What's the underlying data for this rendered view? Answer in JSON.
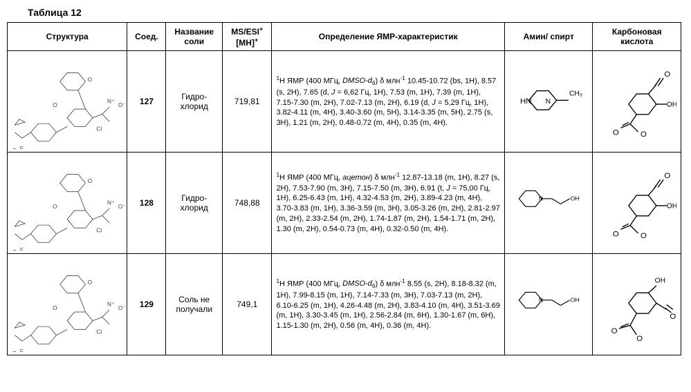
{
  "title": "Таблица 12",
  "headers": {
    "structure": "Структура",
    "compound": "Соед.",
    "salt_name": "Название соли",
    "ms": "MS/ESI",
    "ms_sup": "+",
    "mh": "[MH]",
    "mh_sup": "+",
    "nmr": "Определение ЯМР-характеристик",
    "amine": "Амин/ спирт",
    "acid": "Карбоновая кислота"
  },
  "rows": [
    {
      "compound": "127",
      "salt": "Гидро-хлорид",
      "ms": "719,81",
      "nmr_html": "<sup>1</sup>H ЯМР (400 МГц, <span class='i'>DMSO-d<sub>6</sub></span>) δ млн<sup>-1</sup> 10.45-10.72 (bs, 1H), 8.57 (s, 2H), 7.65 (d, <span class='i'>J</span> = 6,62 Гц, 1H), 7.53 (m, 1H), 7.39 (m, 1H), 7.15-7.30 (m, 2H), 7.02-7.13 (m, 2H), 6.19 (d, <span class='i'>J</span> = 5,29 Гц, 1H), 3.82-4.11 (m, 4H), 3.40-3.60 (m, 5H), 3.14-3.35 (m, 5H), 2.75 (s, 3H), 1.21 (m, 2H), 0.48-0.72 (m, 4H), 0.35 (m, 4H).",
      "amine_svg": "<svg viewBox='0 0 100 60'><g stroke='#000' stroke-width='1.2' fill='none'><polygon points='25,30 35,18 50,18 60,30 50,42 35,42'/><line x1='60' y1='30' x2='75' y2='30'/></g><text x='14' y='34' font-size='10'>HN</text><text x='46' y='34' font-size='9'>N</text><text x='76' y='24' font-size='9'>CH₃</text></svg>",
      "acid_svg": "<svg viewBox='0 0 100 100'><g stroke='#000' stroke-width='1.2' fill='none'><polygon points='40,55 50,42 65,42 75,55 65,68 50,68'/><line x1='65' y1='42' x2='75' y2='30'/><line x1='73' y1='32' x2='80' y2='22'/><line x1='77' y1='32' x2='84' y2='22'/><line x1='75' y1='55' x2='88' y2='55'/><line x1='50' y1='68' x2='42' y2='80'/><line x1='42' y1='80' x2='30' y2='85'/><line x1='42' y1='80' x2='52' y2='90'/><line x1='40' y1='78' x2='32' y2='82'/></g><text x='20' y='94' font-size='10'>O</text><text x='55' y='96' font-size='10'>O</text><text x='85' y='20' font-size='10'>O</text><text x='88' y='58' font-size='9'>OH</text></svg>"
    },
    {
      "compound": "128",
      "salt": "Гидро-хлорид",
      "ms": "748,88",
      "nmr_html": "<sup>1</sup>H ЯМР (400 МГц, <span class='i'>ацетон</span>) δ млн<sup>-1</sup> 12.87-13.18 (m, 1H), 8.27 (s, 2H), 7.53-7.90 (m, 3H), 7.15-7.50 (m, 3H), 6.91 (t, <span class='i'>J</span> = 75,00 Гц, 1H), 6.25-6.43 (m, 1H), 4.32-4.53 (m, 2H), 3.89-4.23 (m, 4H), 3.70-3.83 (m, 1H), 3.36-3.59 (m, 3H), 3.05-3.26 (m, 2H), 2.81-2.97 (m, 2H), 2.33-2.54 (m, 2H), 1.74-1.87 (m, 2H), 1.54-1.71 (m, 2H), 1.30 (m, 2H), 0.54-0.73 (m, 4H), 0.32-0.50 (m, 4H).",
      "amine_svg": "<svg viewBox='0 0 120 50'><g stroke='#000' stroke-width='1.2' fill='none'><polygon points='15,25 25,13 40,13 50,25 40,37 25,37'/><line x1='50' y1='25' x2='65' y2='25'/><line x1='65' y1='25' x2='78' y2='33'/><line x1='78' y1='33' x2='92' y2='25'/></g><text x='45' y='28' font-size='9'>N</text><text x='93' y='28' font-size='9'>OH</text></svg>",
      "acid_svg": "<svg viewBox='0 0 100 100'><g stroke='#000' stroke-width='1.2' fill='none'><polygon points='40,55 50,42 65,42 75,55 65,68 50,68'/><line x1='65' y1='42' x2='75' y2='30'/><line x1='73' y1='32' x2='80' y2='22'/><line x1='77' y1='32' x2='84' y2='22'/><line x1='75' y1='55' x2='88' y2='55'/><line x1='50' y1='68' x2='42' y2='80'/><line x1='42' y1='80' x2='30' y2='85'/><line x1='42' y1='80' x2='52' y2='90'/><line x1='40' y1='78' x2='32' y2='82'/></g><text x='20' y='94' font-size='10'>O</text><text x='55' y='96' font-size='10'>O</text><text x='85' y='20' font-size='10'>O</text><text x='88' y='58' font-size='9'>OH</text></svg>"
    },
    {
      "compound": "129",
      "salt": "Соль не получали",
      "ms": "749,1",
      "nmr_html": "<sup>1</sup>H ЯМР (400 МГц, <span class='i'>DMSO-d<sub>6</sub></span>) δ млн<sup>-1</sup> 8.55 (s, 2H), 8.18-8.32 (m, 1H), 7.99-8.15 (m, 1H), 7.14-7.33 (m, 3H), 7.03-7.13 (m, 2H), 6.10-6.25 (m, 1H), 4.26-4.48 (m, 2H), 3.83-4.10 (m, 4H), 3.51-3.69 (m, 1H), 3.30-3.45 (m, 1H), 2.56-2.84 (m, 6H), 1.30-1.67 (m, 6H), 1.15-1.30 (m, 2H), 0.56 (m, 4H), 0.36 (m, 4H).",
      "amine_svg": "<svg viewBox='0 0 120 50'><g stroke='#000' stroke-width='1.2' fill='none'><polygon points='15,25 25,13 40,13 50,25 40,37 25,37'/><line x1='50' y1='25' x2='65' y2='25'/><line x1='65' y1='25' x2='78' y2='33'/><line x1='78' y1='33' x2='92' y2='25'/></g><text x='45' y='28' font-size='9'>N</text><text x='93' y='28' font-size='9'>OH</text></svg>",
      "acid_svg": "<svg viewBox='0 0 100 100'><g stroke='#000' stroke-width='1.2' fill='none'><polygon points='40,50 50,37 65,37 75,50 65,63 50,63'/><line x1='65' y1='37' x2='75' y2='28'/><line x1='75' y1='50' x2='88' y2='58'/><line x1='86' y1='56' x2='94' y2='62'/><line x1='88' y1='52' x2='96' y2='58'/><line x1='50' y1='63' x2='42' y2='78'/><line x1='42' y1='78' x2='28' y2='82'/><line x1='42' y1='78' x2='50' y2='90'/><line x1='40' y1='76' x2='30' y2='80'/></g><text x='73' y='24' font-size='9'>OH</text><text x='92' y='70' font-size='10'>O</text><text x='18' y='88' font-size='10'>O</text><text x='50' y='98' font-size='10'>O</text></svg>"
    }
  ],
  "structure_placeholder_svg": "<svg viewBox='0 0 160 150'><g stroke='#444' stroke-width='0.8' fill='none'><polygon points='30,110 40,98 55,98 65,110 55,122 40,122'/><polygon points='80,90 90,78 105,78 115,90 105,102 90,102'/><polygon points='70,40 80,28 95,28 105,40 95,52 80,52'/><line x1='65' y1='110' x2='80' y2='102'/><line x1='105' y1='78' x2='95' y2='52'/><line x1='30' y1='110' x2='18' y2='118'/><line x1='18' y1='118' x2='8' y2='110'/><polygon points='8,100 14,92 22,96'/><line x1='115' y1='90' x2='128' y2='85'/><line x1='128' y1='85' x2='138' y2='95'/><line x1='128' y1='85' x2='138' y2='75'/></g><text x='5' y='138' font-size='8' fill='#444'>F</text><text x='15' y='135' font-size='8' fill='#444'>F</text><text x='120' y='108' font-size='8' fill='#444'>Cl</text><text x='135' y='70' font-size='8' fill='#444'>N⁺</text><text x='150' y='75' font-size='8' fill='#444'>O⁻</text><text x='60' y='75' font-size='8' fill='#444'>O</text><text x='108' y='40' font-size='8' fill='#444'>O</text></svg>",
  "col_widths": {
    "structure": 170,
    "compound": 50,
    "salt": 80,
    "ms": 65,
    "nmr": 330,
    "amine": 120,
    "acid": 120
  }
}
